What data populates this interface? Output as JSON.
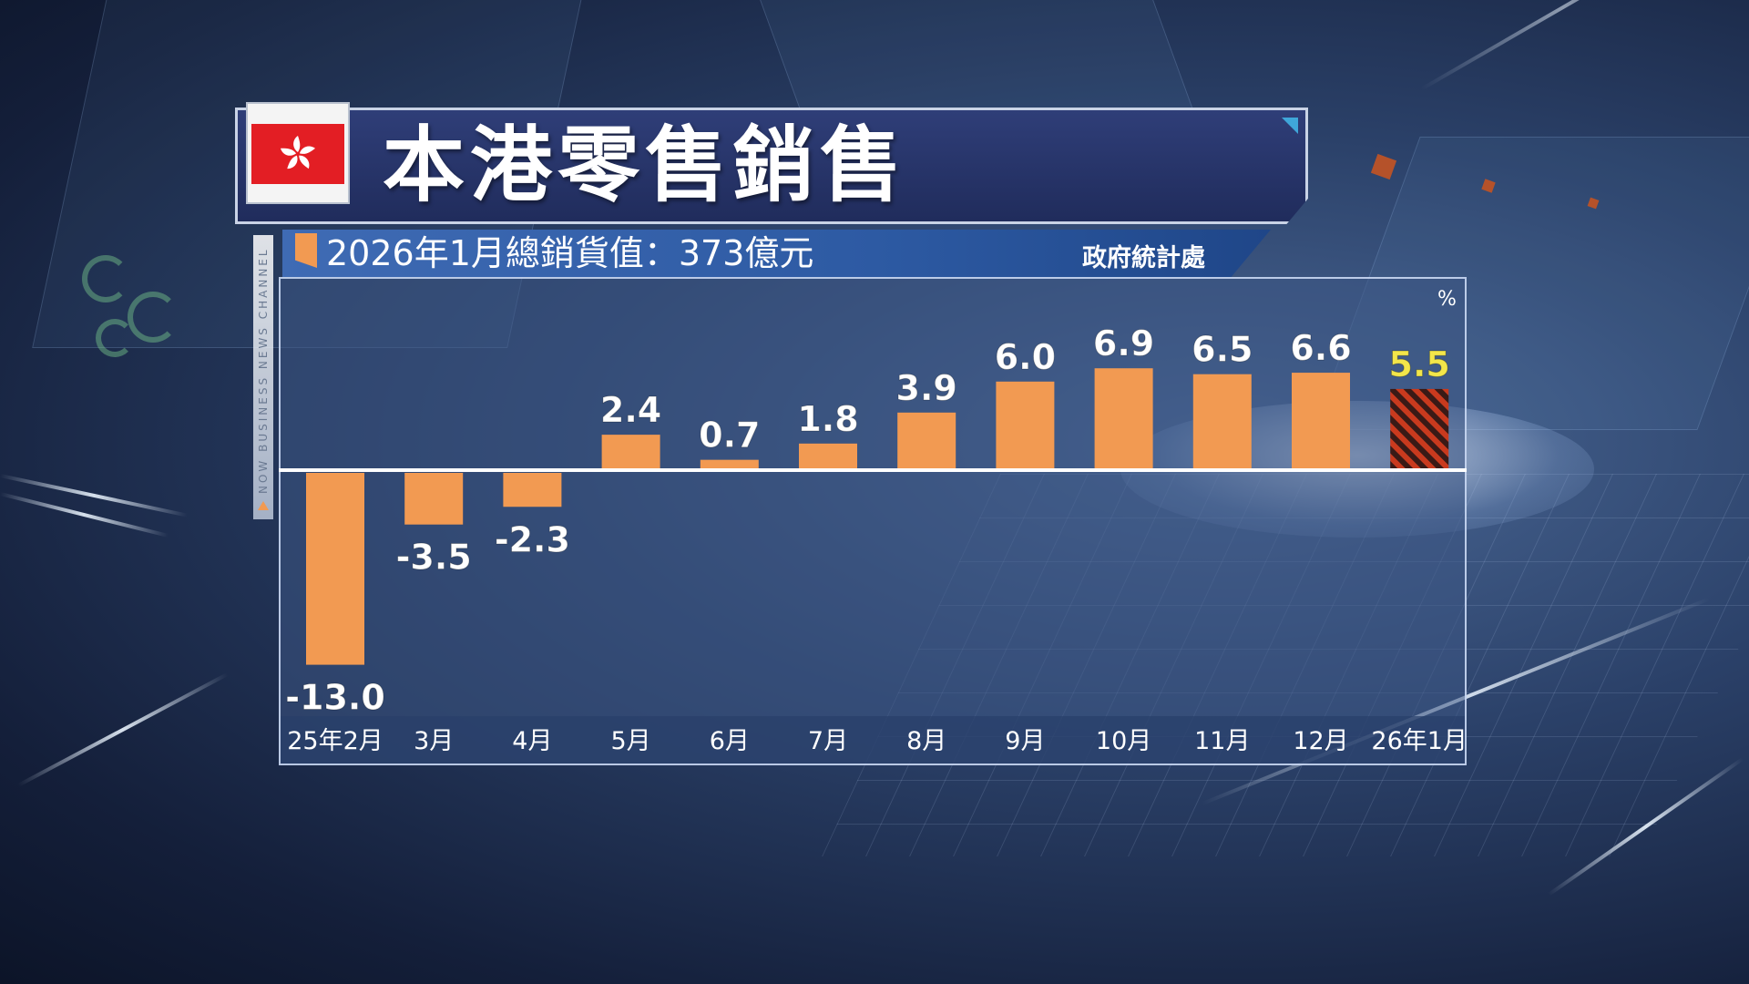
{
  "title": "本港零售銷售",
  "subtitle": "2026年1月總銷貨值：373億元",
  "source": "政府統計處",
  "channel_label": "NOW BUSINESS NEWS CHANNEL",
  "colors": {
    "bar": "#f29a52",
    "highlight_label": "#f3e64a",
    "highlight_stripe_a": "#c93a1e",
    "highlight_stripe_b": "#3a1a16",
    "label": "#ffffff"
  },
  "chart_data": {
    "type": "bar",
    "unit": "%",
    "categories": [
      "25年2月",
      "3月",
      "4月",
      "5月",
      "6月",
      "7月",
      "8月",
      "9月",
      "10月",
      "11月",
      "12月",
      "26年1月"
    ],
    "values": [
      -13.0,
      -3.5,
      -2.3,
      2.4,
      0.7,
      1.8,
      3.9,
      6.0,
      6.9,
      6.5,
      6.6,
      5.5
    ],
    "value_labels": [
      "-13.0",
      "-3.5",
      "-2.3",
      "2.4",
      "0.7",
      "1.8",
      "3.9",
      "6.0",
      "6.9",
      "6.5",
      "6.6",
      "5.5"
    ],
    "highlight_index": 11,
    "ylim": [
      -13.0,
      6.9
    ],
    "grid": false,
    "legend": "none"
  }
}
